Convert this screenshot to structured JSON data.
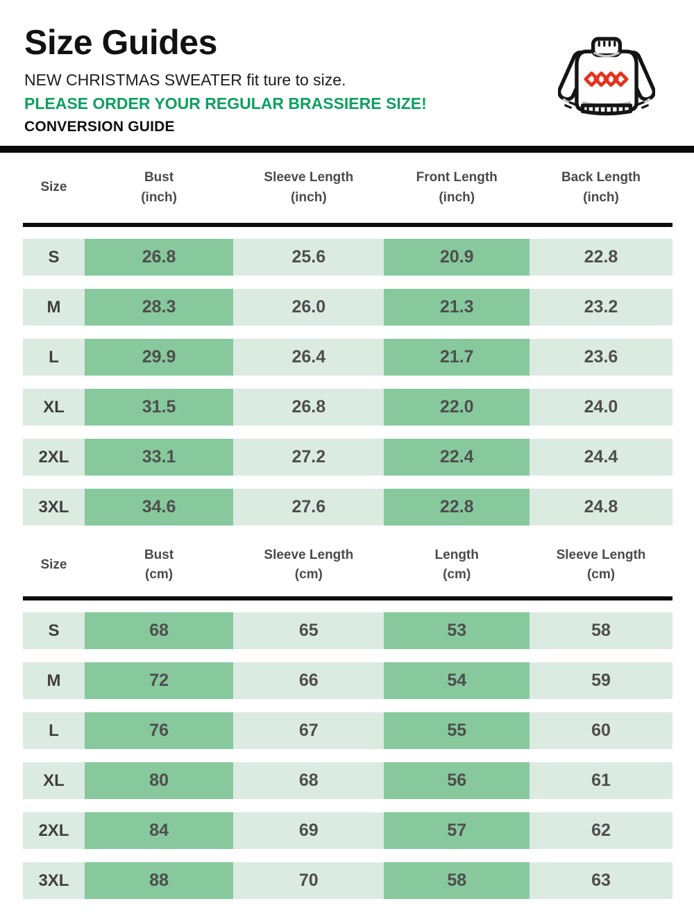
{
  "header": {
    "title": "Size Guides",
    "subtitle": "NEW CHRISTMAS SWEATER fit ture to size.",
    "notice": "PLEASE ORDER YOUR REGULAR BRASSIERE SIZE!",
    "section_label": "CONVERSION GUIDE"
  },
  "icon": {
    "name": "christmas-sweater-icon",
    "outline_color": "#151515",
    "diamond_color": "#e5321f"
  },
  "colors": {
    "accent_green_text": "#0ba15f",
    "cell_highlight_green": "#87c99d",
    "cell_light_green": "#dcebe1",
    "divider_black": "#0b0b0b",
    "cell_text": "#4e4e4e"
  },
  "tables": [
    {
      "name": "inch",
      "columns": [
        {
          "label": "Size",
          "unit": ""
        },
        {
          "label": "Bust",
          "unit": "(inch)"
        },
        {
          "label": "Sleeve Length",
          "unit": "(inch)"
        },
        {
          "label": "Front Length",
          "unit": "(inch)"
        },
        {
          "label": "Back Length",
          "unit": "(inch)"
        }
      ],
      "highlight_columns": [
        1,
        3
      ],
      "rows": [
        {
          "size": "S",
          "values": [
            "26.8",
            "25.6",
            "20.9",
            "22.8"
          ]
        },
        {
          "size": "M",
          "values": [
            "28.3",
            "26.0",
            "21.3",
            "23.2"
          ]
        },
        {
          "size": "L",
          "values": [
            "29.9",
            "26.4",
            "21.7",
            "23.6"
          ]
        },
        {
          "size": "XL",
          "values": [
            "31.5",
            "26.8",
            "22.0",
            "24.0"
          ]
        },
        {
          "size": "2XL",
          "values": [
            "33.1",
            "27.2",
            "22.4",
            "24.4"
          ]
        },
        {
          "size": "3XL",
          "values": [
            "34.6",
            "27.6",
            "22.8",
            "24.8"
          ]
        }
      ]
    },
    {
      "name": "cm",
      "columns": [
        {
          "label": "Size",
          "unit": ""
        },
        {
          "label": "Bust",
          "unit": "(cm)"
        },
        {
          "label": "Sleeve Length",
          "unit": "(cm)"
        },
        {
          "label": "Length",
          "unit": "(cm)"
        },
        {
          "label": "Sleeve Length",
          "unit": "(cm)"
        }
      ],
      "highlight_columns": [
        1,
        3
      ],
      "rows": [
        {
          "size": "S",
          "values": [
            "68",
            "65",
            "53",
            "58"
          ]
        },
        {
          "size": "M",
          "values": [
            "72",
            "66",
            "54",
            "59"
          ]
        },
        {
          "size": "L",
          "values": [
            "76",
            "67",
            "55",
            "60"
          ]
        },
        {
          "size": "XL",
          "values": [
            "80",
            "68",
            "56",
            "61"
          ]
        },
        {
          "size": "2XL",
          "values": [
            "84",
            "69",
            "57",
            "62"
          ]
        },
        {
          "size": "3XL",
          "values": [
            "88",
            "70",
            "58",
            "63"
          ]
        }
      ]
    }
  ]
}
